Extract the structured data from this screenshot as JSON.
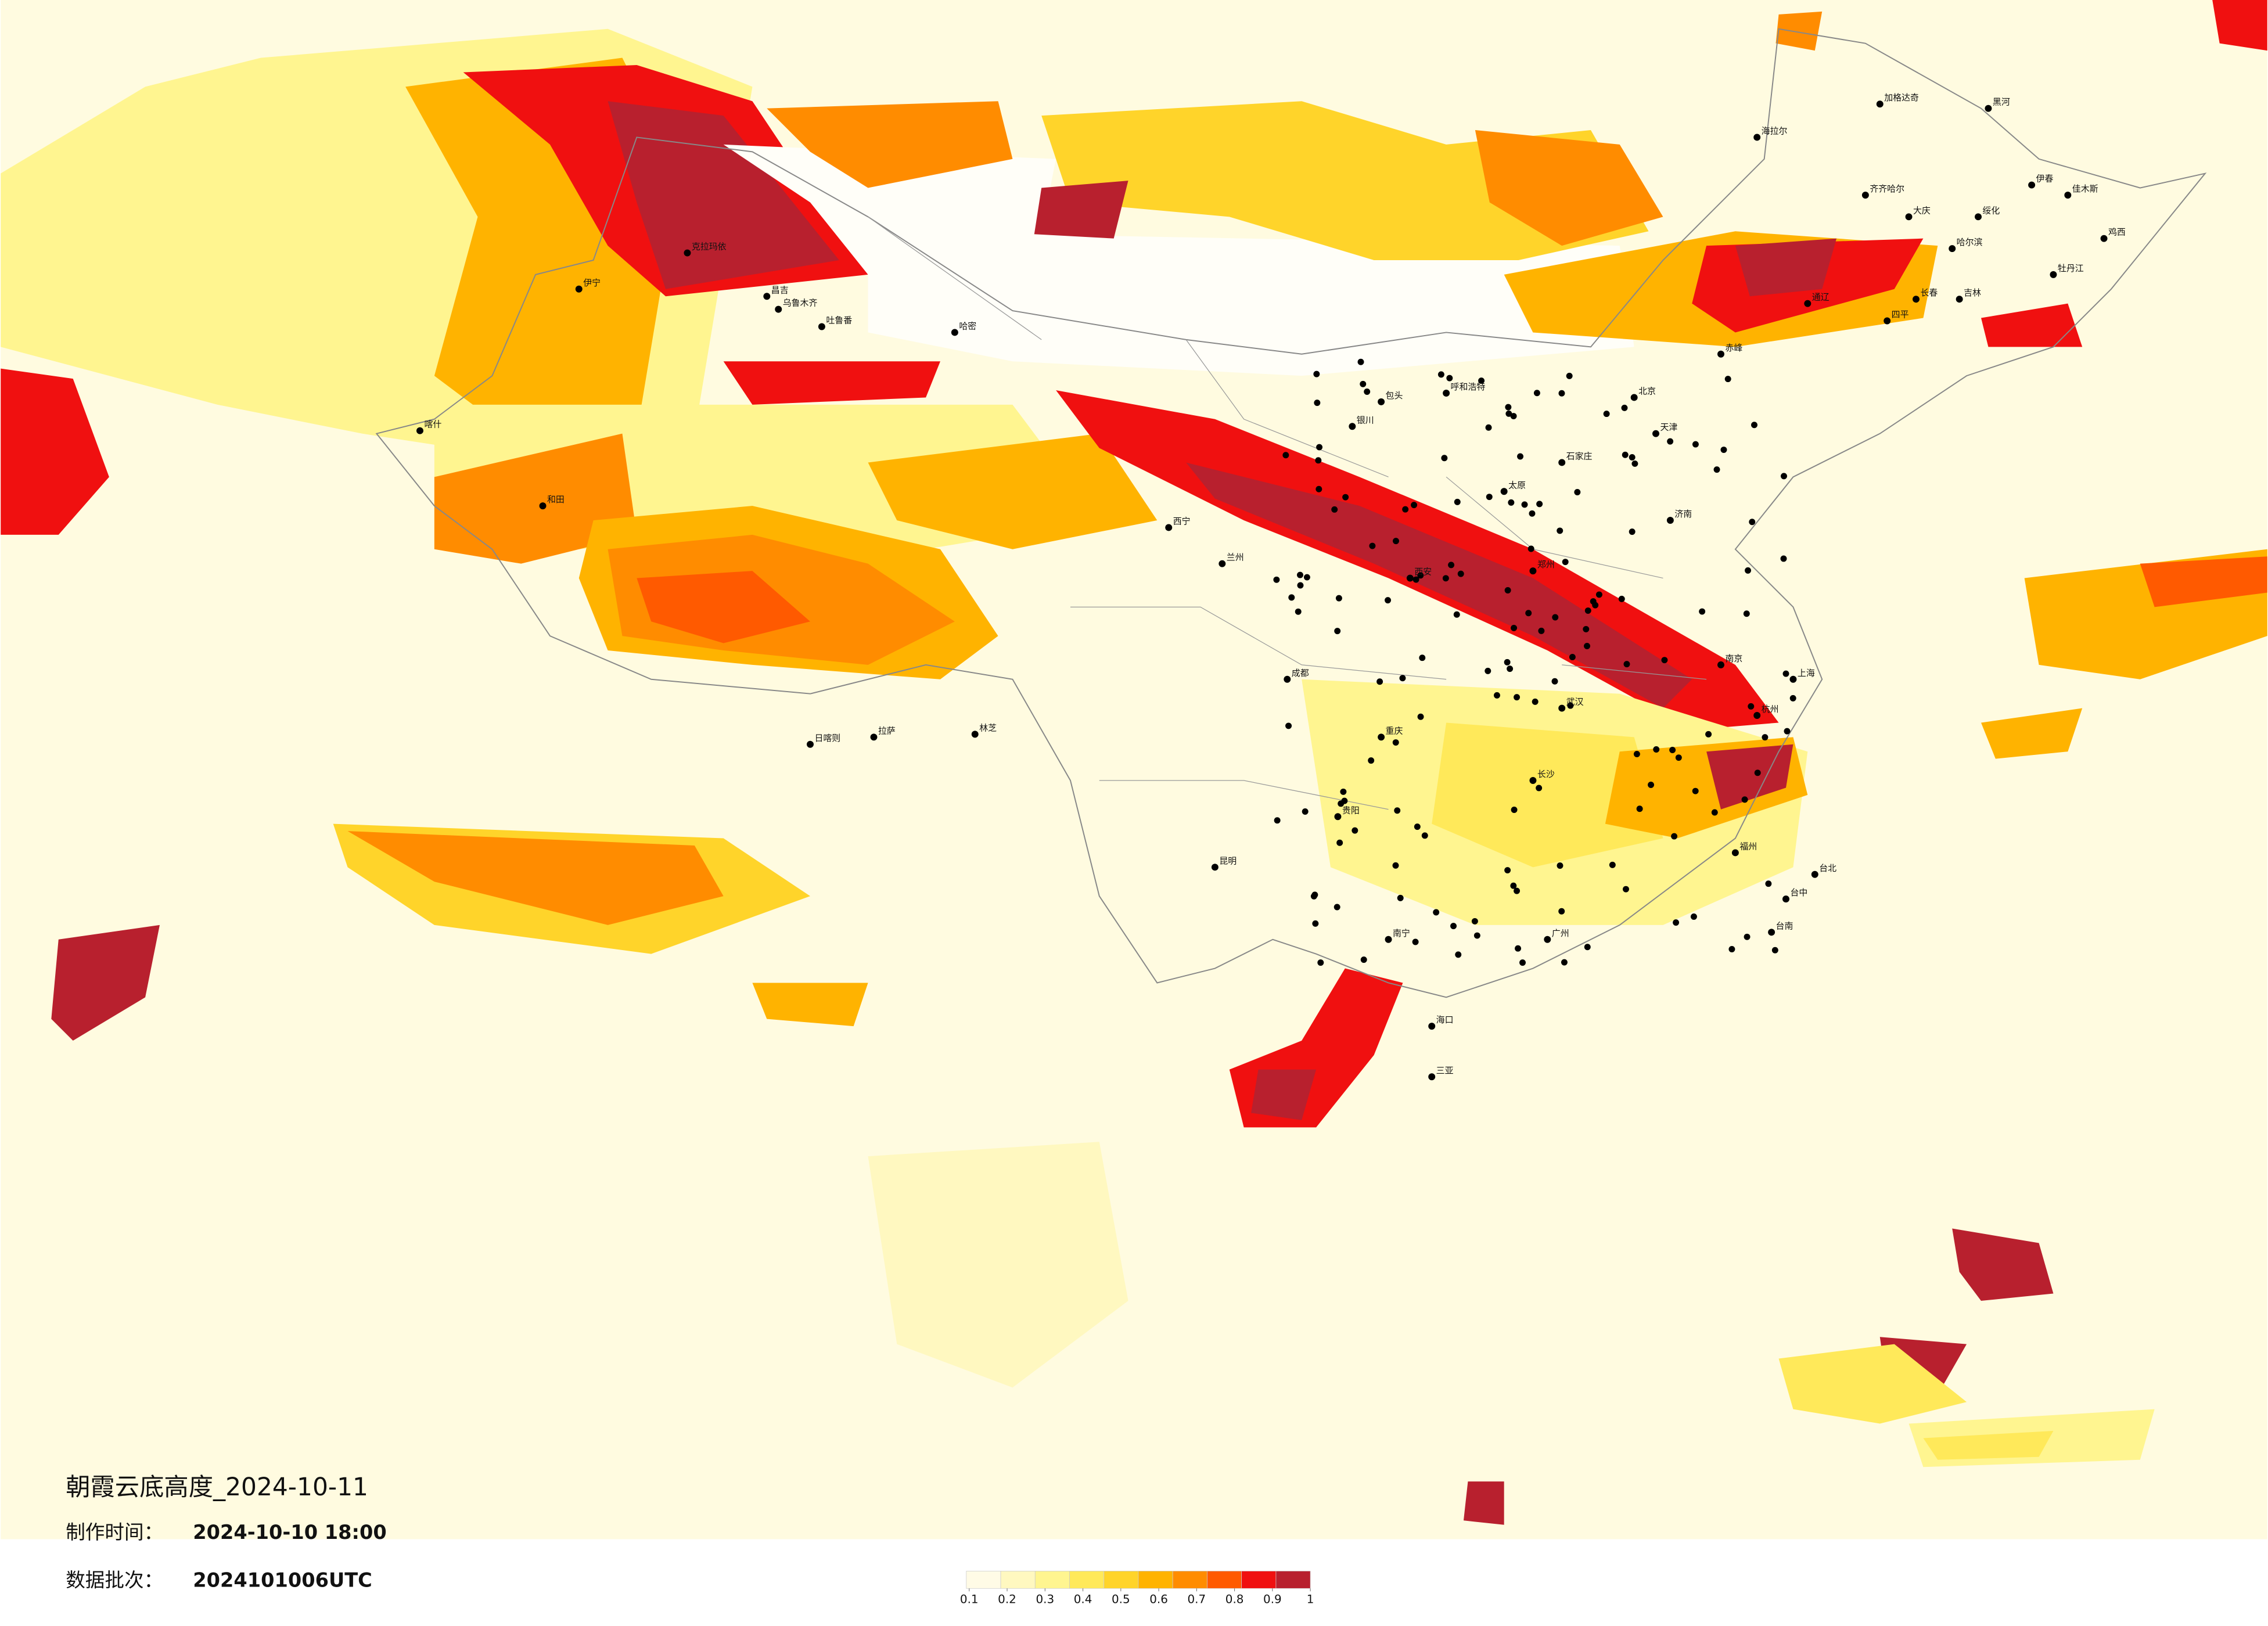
{
  "title": "朝霞云底高度_2024-10-11",
  "info": [
    {
      "label": "制作时间：",
      "value": "2024-10-10 18:00"
    },
    {
      "label": "数据批次：",
      "value": "2024101006UTC"
    }
  ],
  "colorbar": {
    "range": [
      0.1,
      1
    ],
    "ticks": [
      0.1,
      0.2,
      0.3,
      0.4,
      0.5,
      0.6,
      0.7,
      0.8,
      0.9,
      1
    ],
    "colors": [
      "#fffbe6",
      "#fff8c0",
      "#fff590",
      "#ffe95a",
      "#ffd42a",
      "#ffb300",
      "#ff8c00",
      "#ff5a00",
      "#f01010",
      "#b8202e"
    ]
  },
  "cities": [
    "海拉尔",
    "加格达奇",
    "黑河",
    "伊春",
    "齐齐哈尔",
    "大庆",
    "绥化",
    "佳木斯",
    "哈尔滨",
    "牡丹江",
    "鸡西",
    "吉林",
    "长春",
    "四平",
    "通辽",
    "赤峰",
    "克拉玛依",
    "昌吉",
    "乌鲁木齐",
    "吐鲁番",
    "哈密",
    "伊宁",
    "喀什",
    "和田",
    "日喀则",
    "拉萨",
    "林芝",
    "西宁",
    "兰州",
    "银川",
    "呼和浩特",
    "包头",
    "北京",
    "天津",
    "石家庄",
    "太原",
    "济南",
    "郑州",
    "西安",
    "成都",
    "重庆",
    "贵阳",
    "昆明",
    "南宁",
    "武汉",
    "长沙",
    "南京",
    "上海",
    "杭州",
    "福州",
    "广州",
    "海口",
    "三亚",
    "台北",
    "台中",
    "台南"
  ]
}
